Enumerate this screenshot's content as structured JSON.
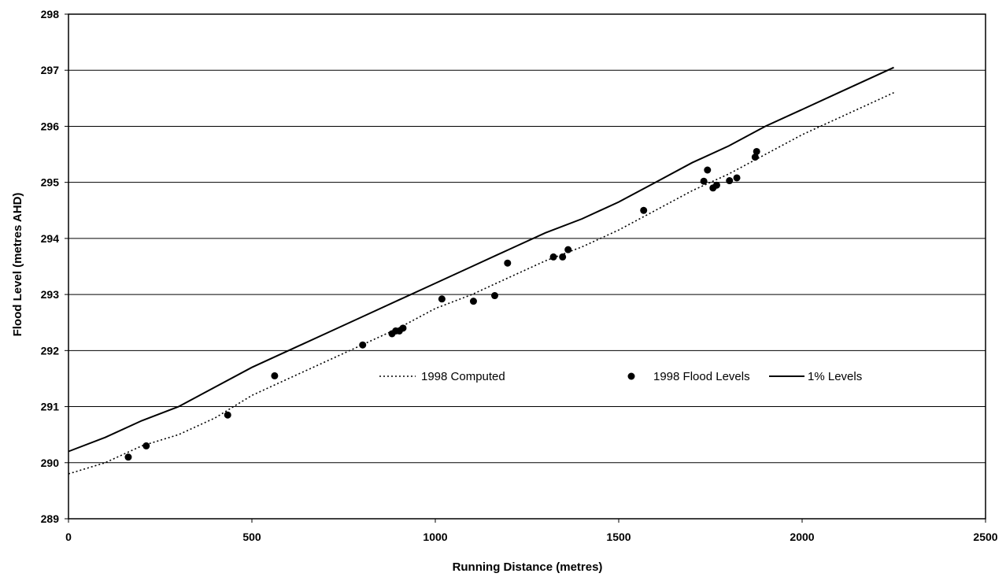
{
  "chart_data": {
    "type": "line",
    "title": "",
    "xlabel": "Running Distance (metres)",
    "ylabel": "Flood Level (metres AHD)",
    "xlim": [
      0,
      2500
    ],
    "ylim": [
      289,
      298
    ],
    "xticks": [
      0,
      500,
      1000,
      1500,
      2000,
      2500
    ],
    "yticks": [
      289,
      290,
      291,
      292,
      293,
      294,
      295,
      296,
      297,
      298
    ],
    "grid": "horizontal",
    "legend_position": "center-right",
    "series": [
      {
        "name": "1998 Computed",
        "type": "line",
        "style": "dotted",
        "color": "#000000",
        "x": [
          0,
          100,
          200,
          300,
          400,
          500,
          600,
          700,
          800,
          900,
          1000,
          1100,
          1200,
          1300,
          1400,
          1500,
          1600,
          1700,
          1800,
          1900,
          2000,
          2100,
          2250
        ],
        "y": [
          289.8,
          290.0,
          290.3,
          290.5,
          290.8,
          291.2,
          291.5,
          291.8,
          292.1,
          292.4,
          292.75,
          293.0,
          293.3,
          293.6,
          293.85,
          294.15,
          294.5,
          294.85,
          295.15,
          295.5,
          295.85,
          296.15,
          296.6
        ]
      },
      {
        "name": "1998 Flood Levels",
        "type": "scatter",
        "color": "#000000",
        "x": [
          163,
          212,
          434,
          562,
          802,
          882,
          892,
          902,
          912,
          1018,
          1104,
          1162,
          1197,
          1322,
          1347,
          1362,
          1568,
          1732,
          1742,
          1757,
          1767,
          1802,
          1822,
          1872,
          1876
        ],
        "y": [
          290.1,
          290.3,
          290.85,
          291.55,
          292.1,
          292.3,
          292.35,
          292.35,
          292.4,
          292.92,
          292.88,
          292.98,
          293.56,
          293.67,
          293.67,
          293.8,
          294.5,
          295.02,
          295.22,
          294.9,
          294.95,
          295.03,
          295.08,
          295.45,
          295.55
        ]
      },
      {
        "name": "1% Levels",
        "type": "line",
        "style": "solid",
        "color": "#000000",
        "x": [
          0,
          100,
          200,
          300,
          400,
          500,
          600,
          700,
          800,
          900,
          1000,
          1100,
          1200,
          1300,
          1400,
          1500,
          1600,
          1700,
          1800,
          1900,
          2000,
          2100,
          2250
        ],
        "y": [
          290.2,
          290.45,
          290.75,
          291.0,
          291.35,
          291.7,
          292.0,
          292.3,
          292.6,
          292.9,
          293.2,
          293.5,
          293.8,
          294.1,
          294.35,
          294.65,
          295.0,
          295.35,
          295.65,
          296.0,
          296.3,
          296.6,
          297.05
        ]
      }
    ]
  }
}
